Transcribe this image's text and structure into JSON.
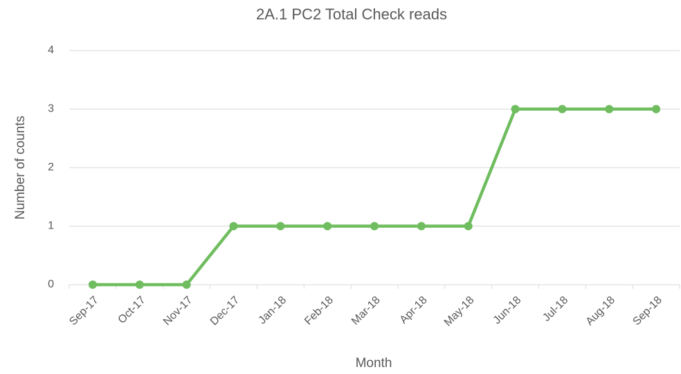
{
  "chart_data": {
    "type": "line",
    "title": "2A.1 PC2 Total Check reads",
    "x_label": "Month",
    "y_label": "Number of counts",
    "categories": [
      "Sep-17",
      "Oct-17",
      "Nov-17",
      "Dec-17",
      "Jan-18",
      "Feb-18",
      "Mar-18",
      "Apr-18",
      "May-18",
      "Jun-18",
      "Jul-18",
      "Aug-18",
      "Sep-18"
    ],
    "series": [
      {
        "name": "Total Check reads",
        "color": "#6fbd5f",
        "values": [
          0,
          0,
          0,
          1,
          1,
          1,
          1,
          1,
          1,
          3,
          3,
          3,
          3
        ]
      }
    ],
    "ylim": [
      0,
      4
    ],
    "yticks": [
      0,
      1,
      2,
      3,
      4
    ],
    "grid": true
  }
}
